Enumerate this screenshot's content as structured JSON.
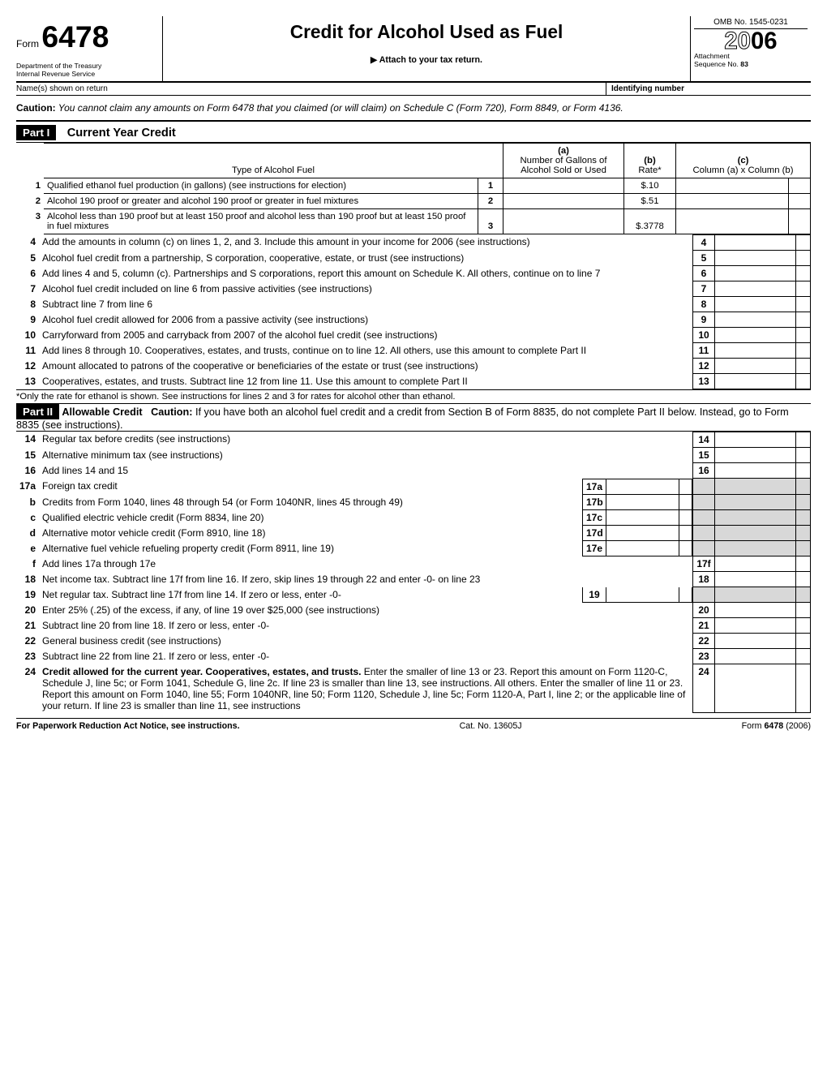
{
  "header": {
    "form_prefix": "Form",
    "form_number": "6478",
    "dept1": "Department of the Treasury",
    "dept2": "Internal Revenue Service",
    "title": "Credit for Alcohol Used as Fuel",
    "attach": "Attach to your tax return.",
    "omb": "OMB No. 1545-0231",
    "year_outline": "20",
    "year_solid": "06",
    "attachment1": "Attachment",
    "attachment2": "Sequence No.",
    "seq_no": "83",
    "name_label": "Name(s) shown on return",
    "id_label": "Identifying number"
  },
  "caution": {
    "label": "Caution:",
    "text": " You cannot claim any amounts on Form 6478 that you claimed (or will claim) on Schedule C (Form 720), Form 8849, or Form 4136."
  },
  "part1": {
    "bar": "Part I",
    "title": "Current Year Credit",
    "col_type": "Type of Alcohol Fuel",
    "col_a": "(a)\nNumber of Gallons of Alcohol Sold or Used",
    "col_b": "(b)\nRate*",
    "col_c": "(c)\nColumn (a) x Column (b)",
    "rows_top": [
      {
        "n": "1",
        "desc": "Qualified ethanol fuel production (in gallons) (see instructions for election)",
        "box": "1",
        "rate": "$.10"
      },
      {
        "n": "2",
        "desc": "Alcohol 190 proof or greater and alcohol 190 proof or greater in fuel mixtures",
        "box": "2",
        "rate": "$.51"
      },
      {
        "n": "3",
        "desc": "Alcohol less than 190 proof but at least 150 proof and alcohol less than 190 proof but at least 150 proof in fuel mixtures",
        "box": "3",
        "rate": "$.3778"
      }
    ],
    "rows_bottom": [
      {
        "n": "4",
        "desc": "Add the amounts in column (c) on lines 1, 2, and 3. Include this amount in your income for 2006 (see instructions)",
        "box": "4"
      },
      {
        "n": "5",
        "desc": "Alcohol fuel credit from a partnership, S corporation, cooperative, estate, or trust (see instructions)",
        "box": "5"
      },
      {
        "n": "6",
        "desc": "Add lines 4 and 5, column (c). Partnerships and S corporations, report this amount on Schedule K. All others, continue on to line 7",
        "box": "6"
      },
      {
        "n": "7",
        "desc": "Alcohol fuel credit included on line 6 from passive activities (see instructions)",
        "box": "7"
      },
      {
        "n": "8",
        "desc": "Subtract line 7 from line 6",
        "box": "8"
      },
      {
        "n": "9",
        "desc": "Alcohol fuel credit allowed for 2006 from a passive activity (see instructions)",
        "box": "9"
      },
      {
        "n": "10",
        "desc": "Carryforward from 2005 and carryback from 2007 of the alcohol fuel credit (see instructions)",
        "box": "10"
      },
      {
        "n": "11",
        "desc": "Add lines 8 through 10. Cooperatives, estates, and trusts, continue on to line 12. All others, use this amount to complete Part II",
        "box": "11"
      },
      {
        "n": "12",
        "desc": "Amount allocated to patrons of the cooperative or beneficiaries of the estate or trust (see instructions)",
        "box": "12"
      },
      {
        "n": "13",
        "desc": "Cooperatives, estates, and trusts. Subtract line 12 from line 11. Use this amount to complete Part II",
        "box": "13"
      }
    ],
    "footnote": "*Only the rate for ethanol is shown. See instructions for lines 2 and 3 for rates for alcohol other than ethanol."
  },
  "part2": {
    "bar": "Part II",
    "title": "Allowable Credit",
    "caution_label": "Caution:",
    "caution_text": " If you have both an alcohol fuel credit and a credit from Section B of Form 8835, do not complete Part II below. Instead, go to Form 8835 (see instructions).",
    "lines_outer_a": [
      {
        "n": "14",
        "desc": "Regular tax before credits (see instructions)",
        "box": "14"
      },
      {
        "n": "15",
        "desc": "Alternative minimum tax (see instructions)",
        "box": "15"
      },
      {
        "n": "16",
        "desc": "Add lines 14 and 15",
        "box": "16"
      }
    ],
    "lines_inner": [
      {
        "n": "17a",
        "desc": "Foreign tax credit",
        "box": "17a"
      },
      {
        "n": "b",
        "desc": "Credits from Form 1040, lines 48 through 54 (or Form 1040NR, lines 45 through 49)",
        "box": "17b"
      },
      {
        "n": "c",
        "desc": "Qualified electric vehicle credit (Form 8834, line 20)",
        "box": "17c"
      },
      {
        "n": "d",
        "desc": "Alternative motor vehicle credit (Form 8910, line 18)",
        "box": "17d"
      },
      {
        "n": "e",
        "desc": "Alternative fuel vehicle refueling property credit (Form 8911, line 19)",
        "box": "17e"
      }
    ],
    "line_f": {
      "n": "f",
      "desc": "Add lines 17a through 17e",
      "box": "17f"
    },
    "lines_outer_b": [
      {
        "n": "18",
        "desc": "Net income tax. Subtract line 17f from line 16. If zero, skip lines 19 through 22 and enter -0- on line 23",
        "box": "18"
      }
    ],
    "line_19": {
      "n": "19",
      "desc": "Net regular tax. Subtract line 17f from line 14. If zero or less, enter -0-",
      "box": "19"
    },
    "lines_outer_c": [
      {
        "n": "20",
        "desc": "Enter 25% (.25) of the excess, if any, of line 19 over $25,000 (see instructions)",
        "box": "20"
      },
      {
        "n": "21",
        "desc": "Subtract line 20 from line 18. If zero or less, enter -0-",
        "box": "21"
      },
      {
        "n": "22",
        "desc": "General business credit (see instructions)",
        "box": "22"
      },
      {
        "n": "23",
        "desc": "Subtract line 22 from line 21. If zero or less, enter -0-",
        "box": "23"
      }
    ],
    "line_24": {
      "n": "24",
      "bold": "Credit allowed for the current year. Cooperatives, estates, and trusts.",
      "desc": " Enter the smaller of line 13 or 23. Report this amount on Form 1120-C, Schedule J, line 5c; or Form 1041, Schedule G, line 2c. If line 23 is smaller than line 13, see instructions. All others. Enter the smaller of line 11 or 23. Report this amount on Form 1040, line 55; Form 1040NR, line 50; Form 1120, Schedule J, line 5c; Form 1120-A, Part I, line 2; or the applicable line of your return. If line 23 is smaller than line 11, see instructions",
      "box": "24"
    }
  },
  "footer": {
    "left": "For Paperwork Reduction Act Notice, see instructions.",
    "mid": "Cat. No. 13605J",
    "right_form": "Form",
    "right_num": "6478",
    "right_year": "(2006)"
  }
}
